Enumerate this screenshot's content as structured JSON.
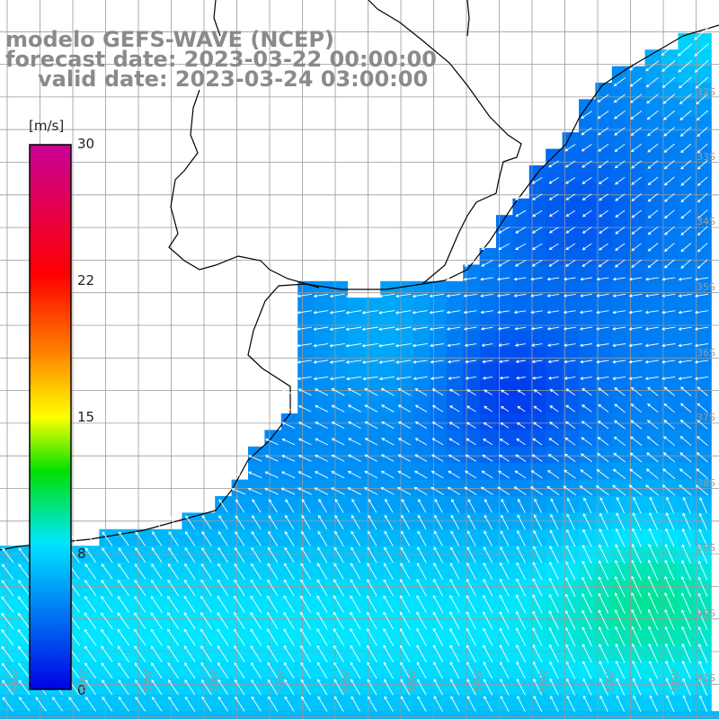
{
  "header": {
    "line1": "modelo GEFS-WAVE (NCEP)",
    "line2": "forecast date: 2023-03-22 00:00:00",
    "line3": "valid date: 2023-03-24 03:00:00"
  },
  "colorbar": {
    "unit": "[m/s]",
    "ticks": [
      "30",
      "22",
      "15",
      "8",
      "0"
    ],
    "min": 0,
    "max": 30,
    "colors": [
      "#0000e6",
      "#00e6ff",
      "#00e000",
      "#ffff00",
      "#ff8000",
      "#ff0000",
      "#c80096"
    ]
  },
  "axes": {
    "lon_labels": [
      "61W",
      "60W",
      "59W",
      "58W",
      "57W",
      "56W",
      "55W",
      "54W",
      "53W",
      "52W",
      "51W"
    ],
    "lat_labels": [
      "32S",
      "33S",
      "34S",
      "35S",
      "36S",
      "37S",
      "38S",
      "39S",
      "40S",
      "41S"
    ]
  },
  "colors": {
    "land": "#ffffff",
    "grid": "#9a9a9a",
    "coast": "#000000",
    "arrow": "#ffffff"
  }
}
